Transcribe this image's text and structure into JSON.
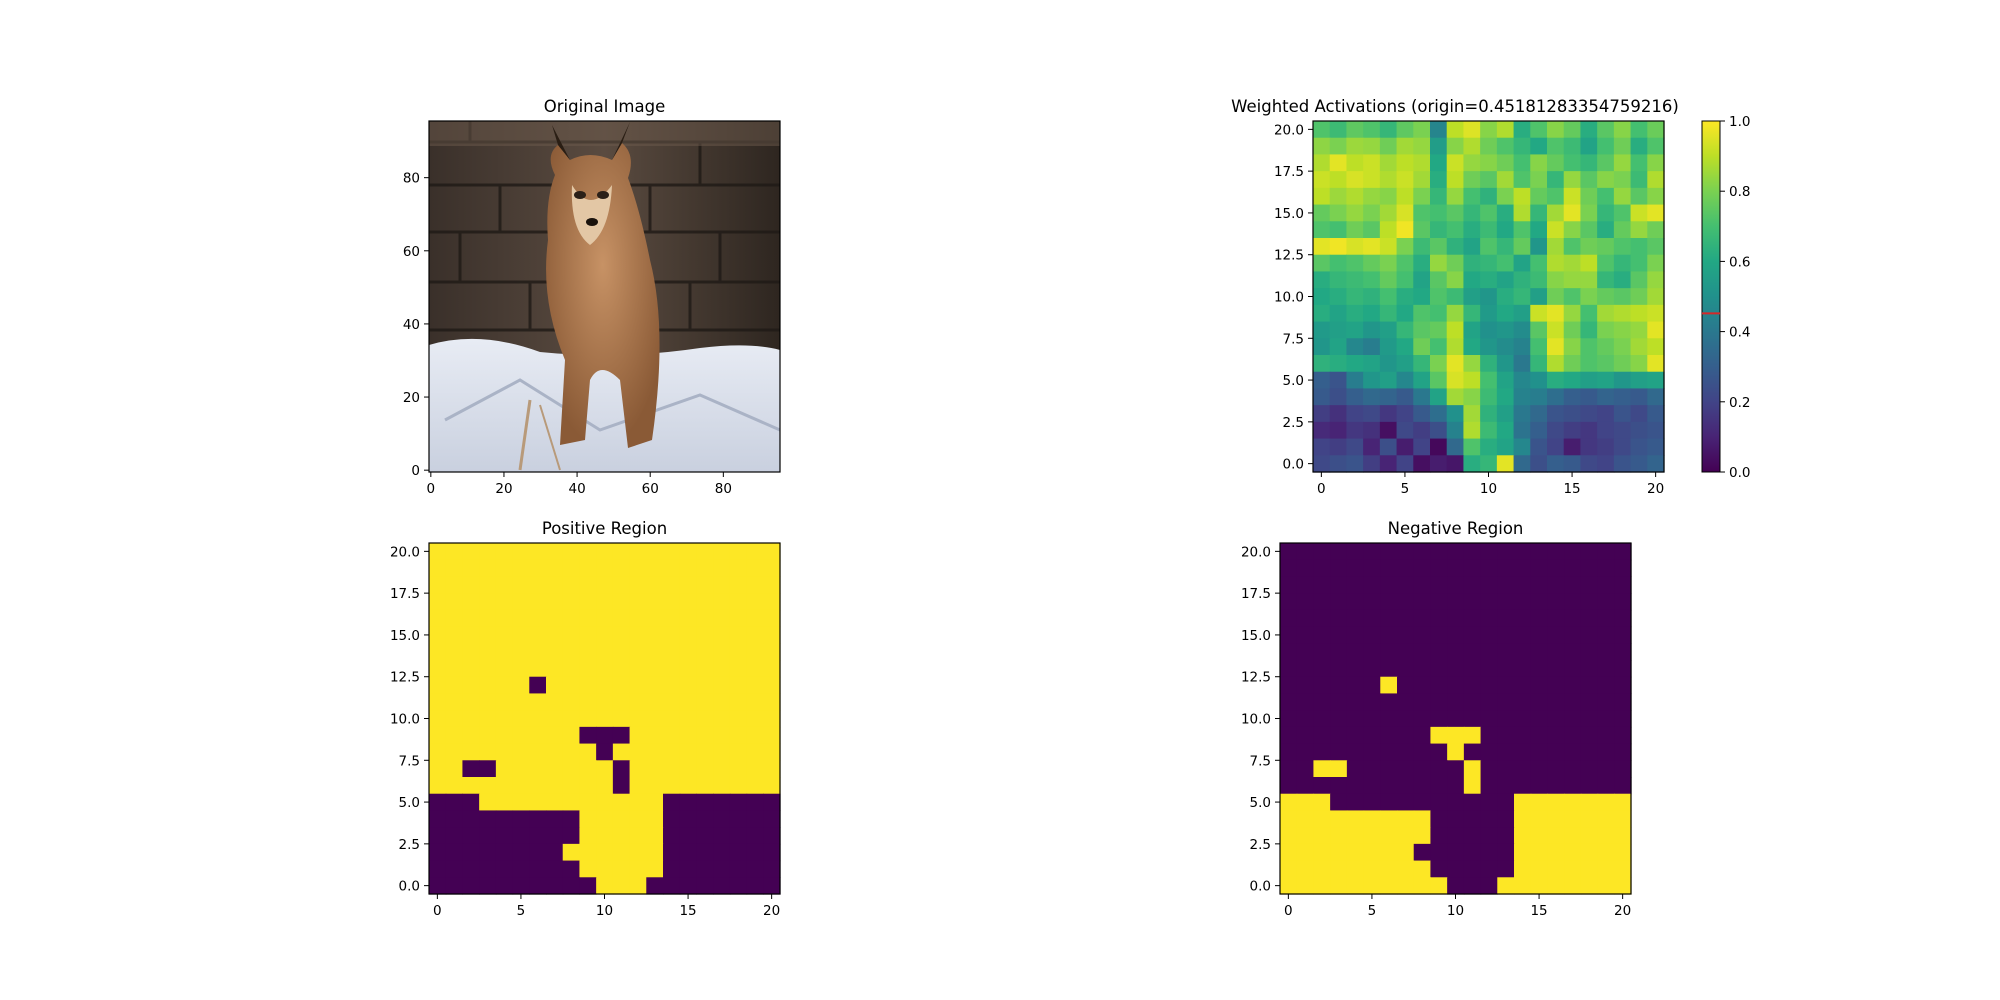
{
  "figure": {
    "panels": [
      {
        "key": "original",
        "title": "Original Image"
      },
      {
        "key": "weighted",
        "title": "Weighted Activations (origin=0.45181283354759216)"
      },
      {
        "key": "positive",
        "title": "Positive Region"
      },
      {
        "key": "negative",
        "title": "Negative Region"
      }
    ]
  },
  "chart_data": [
    {
      "type": "heatmap",
      "title": "Original Image",
      "image_subject": "caracal (wild cat) walking on snow in front of a dark stone wall",
      "xlim": [
        -0.5,
        95.5
      ],
      "ylim": [
        95.5,
        -0.5
      ],
      "xticks": [
        0,
        20,
        40,
        60,
        80
      ],
      "yticks": [
        0,
        20,
        40,
        60,
        80
      ]
    },
    {
      "type": "heatmap",
      "title": "Weighted Activations (origin=0.45181283354759216)",
      "colormap": "viridis",
      "grid_size": [
        21,
        21
      ],
      "xlim": [
        -0.5,
        20.5
      ],
      "ylim": [
        20.5,
        -0.5
      ],
      "xticks": [
        0,
        5,
        10,
        15,
        20
      ],
      "yticks": [
        0.0,
        2.5,
        5.0,
        7.5,
        10.0,
        12.5,
        15.0,
        17.5,
        20.0
      ],
      "colorbar": {
        "range": [
          0.0,
          1.0
        ],
        "ticks": [
          0.0,
          0.2,
          0.4,
          0.6,
          0.8,
          1.0
        ],
        "origin_marker": 0.45181283354759216,
        "origin_marker_color": "#d62728"
      },
      "values": [
        [
          0.72,
          0.68,
          0.75,
          0.72,
          0.66,
          0.75,
          0.8,
          0.45,
          0.9,
          0.95,
          0.82,
          0.88,
          0.62,
          0.72,
          0.82,
          0.76,
          0.62,
          0.74,
          0.82,
          0.7,
          0.77
        ],
        [
          0.83,
          0.8,
          0.85,
          0.84,
          0.78,
          0.86,
          0.84,
          0.55,
          0.82,
          0.88,
          0.78,
          0.72,
          0.66,
          0.6,
          0.72,
          0.68,
          0.58,
          0.7,
          0.78,
          0.62,
          0.72
        ],
        [
          0.88,
          0.96,
          0.9,
          0.92,
          0.86,
          0.9,
          0.88,
          0.6,
          0.92,
          0.84,
          0.82,
          0.78,
          0.7,
          0.82,
          0.76,
          0.7,
          0.66,
          0.74,
          0.84,
          0.7,
          0.82
        ],
        [
          0.92,
          0.9,
          0.94,
          0.92,
          0.88,
          0.92,
          0.86,
          0.62,
          0.9,
          0.78,
          0.74,
          0.86,
          0.72,
          0.8,
          0.66,
          0.84,
          0.74,
          0.82,
          0.8,
          0.68,
          0.88
        ],
        [
          0.9,
          0.85,
          0.88,
          0.84,
          0.82,
          0.9,
          0.8,
          0.66,
          0.84,
          0.7,
          0.64,
          0.8,
          0.9,
          0.76,
          0.72,
          0.92,
          0.78,
          0.7,
          0.84,
          0.74,
          0.82
        ],
        [
          0.76,
          0.8,
          0.84,
          0.8,
          0.86,
          0.94,
          0.72,
          0.7,
          0.74,
          0.66,
          0.72,
          0.62,
          0.88,
          0.66,
          0.86,
          0.96,
          0.8,
          0.66,
          0.72,
          0.92,
          0.96
        ],
        [
          0.72,
          0.7,
          0.78,
          0.74,
          0.9,
          0.98,
          0.74,
          0.66,
          0.7,
          0.62,
          0.68,
          0.6,
          0.72,
          0.6,
          0.92,
          0.82,
          0.74,
          0.62,
          0.76,
          0.84,
          0.78
        ],
        [
          0.96,
          0.98,
          0.94,
          0.96,
          0.92,
          0.8,
          0.68,
          0.74,
          0.64,
          0.58,
          0.72,
          0.66,
          0.76,
          0.52,
          0.86,
          0.72,
          0.78,
          0.76,
          0.72,
          0.7,
          0.74
        ],
        [
          0.74,
          0.7,
          0.72,
          0.76,
          0.8,
          0.72,
          0.62,
          0.84,
          0.78,
          0.64,
          0.66,
          0.7,
          0.58,
          0.7,
          0.88,
          0.86,
          0.9,
          0.72,
          0.66,
          0.7,
          0.8
        ],
        [
          0.62,
          0.66,
          0.68,
          0.7,
          0.76,
          0.7,
          0.58,
          0.74,
          0.82,
          0.6,
          0.62,
          0.58,
          0.64,
          0.68,
          0.82,
          0.84,
          0.84,
          0.66,
          0.62,
          0.74,
          0.84
        ],
        [
          0.6,
          0.62,
          0.66,
          0.64,
          0.7,
          0.62,
          0.6,
          0.72,
          0.68,
          0.56,
          0.52,
          0.62,
          0.66,
          0.56,
          0.78,
          0.72,
          0.8,
          0.76,
          0.74,
          0.78,
          0.86
        ],
        [
          0.62,
          0.58,
          0.62,
          0.6,
          0.66,
          0.6,
          0.72,
          0.7,
          0.84,
          0.66,
          0.54,
          0.6,
          0.56,
          0.92,
          0.96,
          0.84,
          0.7,
          0.86,
          0.88,
          0.9,
          0.92
        ],
        [
          0.54,
          0.56,
          0.58,
          0.52,
          0.56,
          0.66,
          0.74,
          0.76,
          0.9,
          0.58,
          0.5,
          0.52,
          0.48,
          0.74,
          0.92,
          0.78,
          0.66,
          0.8,
          0.82,
          0.84,
          0.96
        ],
        [
          0.52,
          0.58,
          0.46,
          0.42,
          0.54,
          0.6,
          0.78,
          0.7,
          0.88,
          0.6,
          0.52,
          0.48,
          0.44,
          0.7,
          0.96,
          0.82,
          0.72,
          0.76,
          0.8,
          0.86,
          0.9
        ],
        [
          0.64,
          0.62,
          0.6,
          0.58,
          0.52,
          0.56,
          0.66,
          0.8,
          0.96,
          0.84,
          0.64,
          0.52,
          0.4,
          0.66,
          0.88,
          0.78,
          0.72,
          0.74,
          0.78,
          0.82,
          0.96
        ],
        [
          0.3,
          0.26,
          0.42,
          0.52,
          0.56,
          0.46,
          0.58,
          0.74,
          0.94,
          0.9,
          0.7,
          0.58,
          0.46,
          0.5,
          0.62,
          0.6,
          0.56,
          0.58,
          0.52,
          0.56,
          0.58
        ],
        [
          0.28,
          0.24,
          0.3,
          0.34,
          0.32,
          0.28,
          0.4,
          0.58,
          0.86,
          0.82,
          0.68,
          0.6,
          0.44,
          0.42,
          0.36,
          0.3,
          0.28,
          0.32,
          0.3,
          0.28,
          0.34
        ],
        [
          0.18,
          0.14,
          0.2,
          0.22,
          0.16,
          0.2,
          0.28,
          0.36,
          0.5,
          0.86,
          0.64,
          0.56,
          0.4,
          0.34,
          0.26,
          0.24,
          0.22,
          0.2,
          0.26,
          0.22,
          0.28
        ],
        [
          0.12,
          0.1,
          0.16,
          0.14,
          0.04,
          0.22,
          0.18,
          0.24,
          0.44,
          0.88,
          0.68,
          0.6,
          0.38,
          0.3,
          0.22,
          0.18,
          0.16,
          0.2,
          0.22,
          0.24,
          0.26
        ],
        [
          0.2,
          0.18,
          0.22,
          0.1,
          0.24,
          0.08,
          0.2,
          0.02,
          0.34,
          0.72,
          0.62,
          0.58,
          0.46,
          0.26,
          0.2,
          0.08,
          0.16,
          0.18,
          0.22,
          0.26,
          0.28
        ],
        [
          0.22,
          0.24,
          0.26,
          0.18,
          0.1,
          0.2,
          0.04,
          0.08,
          0.06,
          0.62,
          0.66,
          0.96,
          0.34,
          0.24,
          0.3,
          0.28,
          0.22,
          0.2,
          0.26,
          0.28,
          0.32
        ]
      ]
    },
    {
      "type": "heatmap",
      "title": "Positive Region",
      "colormap": "viridis-binary",
      "grid_size": [
        21,
        21
      ],
      "xlim": [
        -0.5,
        20.5
      ],
      "ylim": [
        20.5,
        -0.5
      ],
      "xticks": [
        0,
        5,
        10,
        15,
        20
      ],
      "yticks": [
        0.0,
        2.5,
        5.0,
        7.5,
        10.0,
        12.5,
        15.0,
        17.5,
        20.0
      ],
      "mask_rows": [
        "111111111111111111111",
        "111111111111111111111",
        "111111111111111111111",
        "111111111111111111111",
        "111111111111111111111",
        "111111111111111111111",
        "111111111111111111111",
        "111111111111111111111",
        "111111011111111111111",
        "111111111111111111111",
        "111111111111111111111",
        "111111111000111111111",
        "111111111101111111111",
        "110011111110111111111",
        "111111111110111111111",
        "000111111111110000000",
        "000000000111110000000",
        "000000000111110000000",
        "000000001111110000000",
        "000000000111110000000",
        "000000000011100000000"
      ]
    },
    {
      "type": "heatmap",
      "title": "Negative Region",
      "colormap": "viridis-binary",
      "grid_size": [
        21,
        21
      ],
      "xlim": [
        -0.5,
        20.5
      ],
      "ylim": [
        20.5,
        -0.5
      ],
      "xticks": [
        0,
        5,
        10,
        15,
        20
      ],
      "yticks": [
        0.0,
        2.5,
        5.0,
        7.5,
        10.0,
        12.5,
        15.0,
        17.5,
        20.0
      ],
      "mask_rows": [
        "000000000000000000000",
        "000000000000000000000",
        "000000000000000000000",
        "000000000000000000000",
        "000000000000000000000",
        "000000000000000000000",
        "000000000000000000000",
        "000000000000000000000",
        "000000100000000000000",
        "000000000000000000000",
        "000000000000000000000",
        "000000000111000000000",
        "000000000010000000000",
        "001100000001000000000",
        "000000000001000000000",
        "111000000000001111111",
        "111111111000001111111",
        "111111111000001111111",
        "111111110000001111111",
        "111111111000001111111",
        "111111111100011111111"
      ]
    }
  ]
}
